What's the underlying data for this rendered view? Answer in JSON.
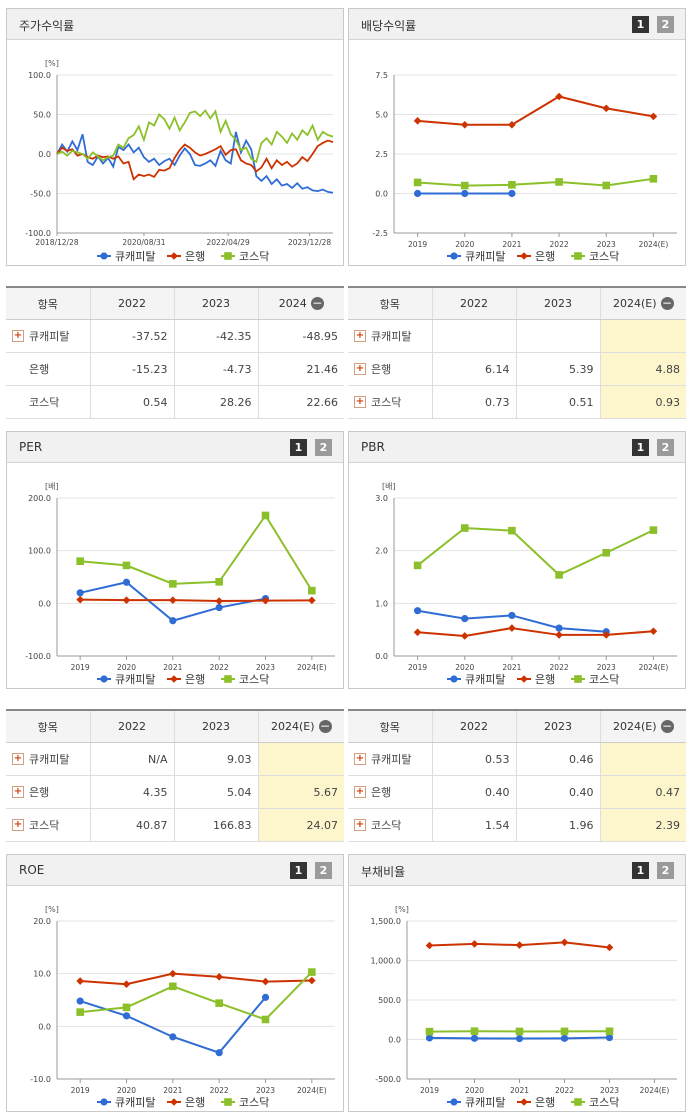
{
  "panels": {
    "stock": {
      "title": "주가수익률"
    },
    "dividend": {
      "title": "배당수익률",
      "tab1": "1",
      "tab2": "2"
    },
    "per": {
      "title": "PER",
      "tab1": "1",
      "tab2": "2"
    },
    "pbr": {
      "title": "PBR",
      "tab1": "1",
      "tab2": "2"
    },
    "roe": {
      "title": "ROE",
      "tab1": "1",
      "tab2": "2"
    },
    "debt": {
      "title": "부채비율",
      "tab1": "1",
      "tab2": "2"
    }
  },
  "colors": {
    "cuecapital": "#2f6cd4",
    "bank": "#cc3300",
    "kosdaq": "#8cc02a"
  },
  "legend": [
    "큐캐피탈",
    "은행",
    "코스닥"
  ],
  "chart_data": [
    {
      "id": "stock",
      "type": "line",
      "unit": "[%]",
      "ylim": [
        -100,
        100
      ],
      "yticks": [
        "100.0",
        "50.0",
        "0.0",
        "-50.0",
        "-100.0"
      ],
      "xticks": [
        "2018/12/28",
        "2020/08/31",
        "2022/04/29",
        "2023/12/28"
      ],
      "series": [
        {
          "name": "큐캐피탈",
          "values": [
            0,
            12,
            3,
            16,
            5,
            25,
            -10,
            -14,
            -3,
            -12,
            -5,
            -16,
            9,
            5,
            12,
            2,
            8,
            -4,
            -10,
            -6,
            -14,
            -9,
            -6,
            -14,
            -2,
            7,
            0,
            -14,
            -15,
            -12,
            -8,
            -15,
            4,
            -8,
            -12,
            28,
            2,
            17,
            6,
            -28,
            -34,
            -28,
            -38,
            -32,
            -40,
            -38,
            -43,
            -37,
            -44,
            -42,
            -46,
            -47,
            -45,
            -48,
            -49
          ]
        },
        {
          "name": "은행",
          "values": [
            0,
            8,
            4,
            6,
            -2,
            0,
            -4,
            -6,
            -2,
            -4,
            -3,
            -6,
            -3,
            -12,
            -10,
            -32,
            -26,
            -28,
            -26,
            -29,
            -20,
            -21,
            -18,
            -5,
            5,
            12,
            8,
            2,
            -2,
            0,
            3,
            6,
            10,
            -1,
            5,
            6,
            -8,
            -12,
            -14,
            -22,
            -17,
            -6,
            -18,
            -8,
            -14,
            -10,
            -16,
            -12,
            -4,
            -9,
            0,
            10,
            14,
            17,
            15
          ]
        },
        {
          "name": "코스닥",
          "values": [
            0,
            3,
            -2,
            4,
            2,
            0,
            -6,
            2,
            -3,
            -8,
            -4,
            -2,
            12,
            8,
            20,
            24,
            35,
            18,
            40,
            36,
            50,
            44,
            32,
            46,
            30,
            40,
            52,
            54,
            48,
            55,
            45,
            54,
            28,
            42,
            25,
            18,
            5,
            8,
            -6,
            -10,
            14,
            20,
            12,
            28,
            22,
            14,
            26,
            18,
            30,
            24,
            36,
            18,
            28,
            24,
            22
          ]
        }
      ]
    },
    {
      "id": "dividend",
      "type": "line",
      "unit": "",
      "ylim": [
        -2.5,
        7.5
      ],
      "yticks": [
        "7.5",
        "5.0",
        "2.5",
        "0.0",
        "-2.5"
      ],
      "categories": [
        "2019",
        "2020",
        "2021",
        "2022",
        "2023",
        "2024(E)"
      ],
      "series": [
        {
          "name": "큐캐피탈",
          "values": [
            0,
            0,
            0,
            null,
            null,
            null
          ]
        },
        {
          "name": "은행",
          "values": [
            4.6,
            4.35,
            4.35,
            6.14,
            5.39,
            4.88
          ]
        },
        {
          "name": "코스닥",
          "values": [
            0.7,
            0.5,
            0.55,
            0.73,
            0.51,
            0.93
          ]
        }
      ]
    },
    {
      "id": "per",
      "type": "line",
      "unit": "[배]",
      "ylim": [
        -100,
        200
      ],
      "yticks": [
        "200.0",
        "100.0",
        "0.0",
        "-100.0"
      ],
      "categories": [
        "2019",
        "2020",
        "2021",
        "2022",
        "2023",
        "2024(E)"
      ],
      "series": [
        {
          "name": "큐캐피탈",
          "values": [
            20,
            40,
            -33,
            -8,
            9.03,
            null
          ]
        },
        {
          "name": "은행",
          "values": [
            7,
            6,
            6,
            4.35,
            5.04,
            5.67
          ]
        },
        {
          "name": "코스닥",
          "values": [
            80,
            72,
            37,
            40.87,
            166.83,
            24.07
          ]
        }
      ]
    },
    {
      "id": "pbr",
      "type": "line",
      "unit": "[배]",
      "ylim": [
        0,
        3
      ],
      "yticks": [
        "3.0",
        "2.0",
        "1.0",
        "0.0"
      ],
      "categories": [
        "2019",
        "2020",
        "2021",
        "2022",
        "2023",
        "2024(E)"
      ],
      "series": [
        {
          "name": "큐캐피탈",
          "values": [
            0.86,
            0.71,
            0.77,
            0.53,
            0.46,
            null
          ]
        },
        {
          "name": "은행",
          "values": [
            0.45,
            0.38,
            0.53,
            0.4,
            0.4,
            0.47
          ]
        },
        {
          "name": "코스닥",
          "values": [
            1.72,
            2.43,
            2.38,
            1.54,
            1.96,
            2.39
          ]
        }
      ]
    },
    {
      "id": "roe",
      "type": "line",
      "unit": "[%]",
      "ylim": [
        -10,
        20
      ],
      "yticks": [
        "20.0",
        "10.0",
        "0.0",
        "-10.0"
      ],
      "categories": [
        "2019",
        "2020",
        "2021",
        "2022",
        "2023",
        "2024(E)"
      ],
      "series": [
        {
          "name": "큐캐피탈",
          "values": [
            4.8,
            2,
            -2,
            -5,
            5.5,
            null
          ]
        },
        {
          "name": "은행",
          "values": [
            8.6,
            8,
            10,
            9.4,
            8.5,
            8.7
          ]
        },
        {
          "name": "코스닥",
          "values": [
            2.7,
            3.6,
            7.6,
            4.4,
            1.3,
            10.3
          ]
        }
      ]
    },
    {
      "id": "debt",
      "type": "line",
      "unit": "[%]",
      "ylim": [
        -500,
        1500
      ],
      "yticks": [
        "1,500.0",
        "1,000.0",
        "500.0",
        "0.0",
        "-500.0"
      ],
      "categories": [
        "2019",
        "2020",
        "2021",
        "2022",
        "2023",
        "2024(E)"
      ],
      "series": [
        {
          "name": "큐캐피탈",
          "values": [
            20,
            15,
            12,
            15,
            25,
            null
          ]
        },
        {
          "name": "은행",
          "values": [
            1190,
            1210,
            1195,
            1230,
            1165,
            null
          ]
        },
        {
          "name": "코스닥",
          "values": [
            100,
            105,
            102,
            103,
            104,
            null
          ]
        }
      ]
    }
  ],
  "tables": {
    "stock": {
      "headers": [
        "항목",
        "2022",
        "2023",
        "2024"
      ],
      "rows": [
        {
          "label": "큐캐피탈",
          "vals": [
            "-37.52",
            "-42.35",
            "-48.95"
          ]
        },
        {
          "label": "은행",
          "vals": [
            "-15.23",
            "-4.73",
            "21.46"
          ]
        },
        {
          "label": "코스닥",
          "vals": [
            "0.54",
            "28.26",
            "22.66"
          ]
        }
      ]
    },
    "dividend": {
      "headers": [
        "항목",
        "2022",
        "2023",
        "2024(E)"
      ],
      "rows": [
        {
          "label": "큐캐피탈",
          "vals": [
            "",
            "",
            ""
          ]
        },
        {
          "label": "은행",
          "vals": [
            "6.14",
            "5.39",
            "4.88"
          ]
        },
        {
          "label": "코스닥",
          "vals": [
            "0.73",
            "0.51",
            "0.93"
          ]
        }
      ]
    },
    "per": {
      "headers": [
        "항목",
        "2022",
        "2023",
        "2024(E)"
      ],
      "rows": [
        {
          "label": "큐캐피탈",
          "vals": [
            "N/A",
            "9.03",
            ""
          ]
        },
        {
          "label": "은행",
          "vals": [
            "4.35",
            "5.04",
            "5.67"
          ]
        },
        {
          "label": "코스닥",
          "vals": [
            "40.87",
            "166.83",
            "24.07"
          ]
        }
      ]
    },
    "pbr": {
      "headers": [
        "항목",
        "2022",
        "2023",
        "2024(E)"
      ],
      "rows": [
        {
          "label": "큐캐피탈",
          "vals": [
            "0.53",
            "0.46",
            ""
          ]
        },
        {
          "label": "은행",
          "vals": [
            "0.40",
            "0.40",
            "0.47"
          ]
        },
        {
          "label": "코스닥",
          "vals": [
            "1.54",
            "1.96",
            "2.39"
          ]
        }
      ]
    }
  }
}
